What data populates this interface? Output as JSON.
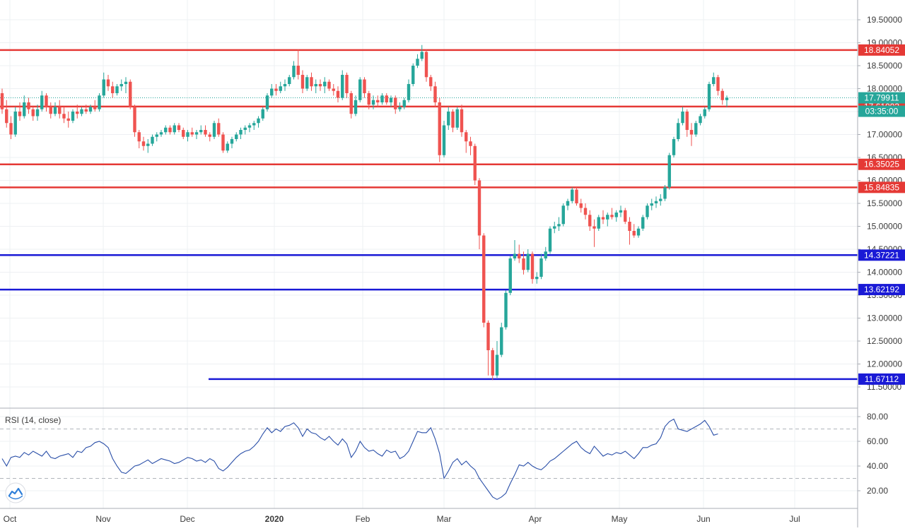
{
  "chart_data": [
    {
      "type": "candlestick",
      "symbol_label": "",
      "x_labels": [
        "Oct",
        "Nov",
        "Dec",
        "2020",
        "Feb",
        "Mar",
        "Apr",
        "May",
        "Jun",
        "Jul"
      ],
      "y_ticks": [
        "11.50000",
        "12.00000",
        "12.50000",
        "13.00000",
        "13.50000",
        "14.00000",
        "14.50000",
        "15.00000",
        "15.50000",
        "16.00000",
        "16.50000",
        "17.00000",
        "17.50000",
        "18.00000",
        "18.50000",
        "19.00000",
        "19.50000"
      ],
      "ylim": [
        11.3,
        20.1
      ],
      "grid": true,
      "colors": {
        "up": "#26a69a",
        "down": "#ef5350",
        "support": "#1a1ad6",
        "resistance": "#e53935",
        "current": "#26a69a",
        "countdown": "#26a69a"
      },
      "horizontal_levels": [
        {
          "value": 18.84052,
          "label": "18.84052",
          "kind": "resistance"
        },
        {
          "value": 17.61003,
          "label": "17.61003",
          "kind": "resistance"
        },
        {
          "value": 16.35025,
          "label": "16.35025",
          "kind": "resistance"
        },
        {
          "value": 15.84835,
          "label": "15.84835",
          "kind": "resistance"
        },
        {
          "value": 14.37221,
          "label": "14.37221",
          "kind": "support"
        },
        {
          "value": 13.62192,
          "label": "13.62192",
          "kind": "support"
        },
        {
          "value": 11.67112,
          "label": "11.67112",
          "kind": "support",
          "starts_at": "Dec"
        }
      ],
      "last_price": {
        "value": 17.79911,
        "label": "17.79911"
      },
      "countdown": "03:35:00",
      "candles": [
        [
          17.9,
          18.0,
          17.45,
          17.55
        ],
        [
          17.55,
          17.75,
          17.15,
          17.25
        ],
        [
          17.25,
          17.4,
          16.9,
          17.0
        ],
        [
          17.0,
          17.6,
          16.95,
          17.5
        ],
        [
          17.5,
          17.7,
          17.3,
          17.4
        ],
        [
          17.4,
          17.85,
          17.35,
          17.7
        ],
        [
          17.7,
          17.8,
          17.45,
          17.55
        ],
        [
          17.55,
          17.6,
          17.3,
          17.4
        ],
        [
          17.4,
          17.65,
          17.3,
          17.55
        ],
        [
          17.55,
          17.95,
          17.5,
          17.85
        ],
        [
          17.85,
          17.9,
          17.5,
          17.6
        ],
        [
          17.6,
          17.7,
          17.35,
          17.45
        ],
        [
          17.45,
          17.7,
          17.4,
          17.6
        ],
        [
          17.6,
          17.75,
          17.35,
          17.45
        ],
        [
          17.45,
          17.6,
          17.25,
          17.35
        ],
        [
          17.35,
          17.5,
          17.15,
          17.3
        ],
        [
          17.3,
          17.55,
          17.25,
          17.5
        ],
        [
          17.5,
          17.65,
          17.35,
          17.45
        ],
        [
          17.45,
          17.6,
          17.4,
          17.55
        ],
        [
          17.55,
          17.65,
          17.45,
          17.5
        ],
        [
          17.5,
          17.65,
          17.45,
          17.6
        ],
        [
          17.6,
          17.75,
          17.5,
          17.55
        ],
        [
          17.55,
          17.9,
          17.5,
          17.85
        ],
        [
          17.85,
          18.35,
          17.8,
          18.2
        ],
        [
          18.2,
          18.3,
          17.95,
          18.05
        ],
        [
          18.05,
          18.15,
          17.8,
          17.9
        ],
        [
          17.9,
          18.1,
          17.85,
          18.05
        ],
        [
          18.05,
          18.2,
          17.95,
          18.1
        ],
        [
          18.1,
          18.25,
          17.9,
          18.15
        ],
        [
          18.15,
          18.2,
          17.55,
          17.6
        ],
        [
          17.6,
          17.65,
          16.95,
          17.05
        ],
        [
          17.05,
          17.1,
          16.7,
          16.85
        ],
        [
          16.85,
          16.95,
          16.65,
          16.75
        ],
        [
          16.75,
          16.9,
          16.6,
          16.8
        ],
        [
          16.8,
          17.0,
          16.75,
          16.95
        ],
        [
          16.95,
          17.05,
          16.85,
          17.0
        ],
        [
          17.0,
          17.1,
          16.95,
          17.05
        ],
        [
          17.05,
          17.2,
          17.0,
          17.15
        ],
        [
          17.15,
          17.2,
          17.0,
          17.05
        ],
        [
          17.05,
          17.25,
          17.0,
          17.2
        ],
        [
          17.2,
          17.25,
          17.05,
          17.1
        ],
        [
          17.1,
          17.15,
          16.9,
          16.95
        ],
        [
          16.95,
          17.1,
          16.85,
          17.05
        ],
        [
          17.05,
          17.15,
          16.95,
          17.0
        ],
        [
          17.0,
          17.1,
          16.9,
          17.05
        ],
        [
          17.05,
          17.2,
          17.0,
          17.1
        ],
        [
          17.1,
          17.2,
          16.95,
          17.0
        ],
        [
          17.0,
          17.05,
          16.85,
          16.95
        ],
        [
          16.95,
          17.3,
          16.9,
          17.25
        ],
        [
          17.25,
          17.35,
          16.95,
          17.0
        ],
        [
          17.0,
          17.05,
          16.6,
          16.65
        ],
        [
          16.65,
          16.85,
          16.6,
          16.8
        ],
        [
          16.8,
          16.95,
          16.7,
          16.9
        ],
        [
          16.9,
          17.05,
          16.85,
          17.0
        ],
        [
          17.0,
          17.15,
          16.9,
          17.1
        ],
        [
          17.1,
          17.2,
          17.0,
          17.15
        ],
        [
          17.15,
          17.25,
          17.05,
          17.2
        ],
        [
          17.2,
          17.3,
          17.1,
          17.25
        ],
        [
          17.25,
          17.4,
          17.15,
          17.35
        ],
        [
          17.35,
          17.6,
          17.3,
          17.55
        ],
        [
          17.55,
          17.9,
          17.5,
          17.85
        ],
        [
          17.85,
          18.1,
          17.8,
          18.0
        ],
        [
          18.0,
          18.1,
          17.85,
          17.95
        ],
        [
          17.95,
          18.15,
          17.9,
          18.05
        ],
        [
          18.05,
          18.2,
          17.95,
          18.1
        ],
        [
          18.1,
          18.3,
          18.05,
          18.25
        ],
        [
          18.25,
          18.6,
          18.2,
          18.5
        ],
        [
          18.5,
          18.85,
          18.2,
          18.3
        ],
        [
          18.3,
          18.4,
          17.9,
          18.0
        ],
        [
          18.0,
          18.3,
          17.95,
          18.25
        ],
        [
          18.25,
          18.35,
          17.95,
          18.05
        ],
        [
          18.05,
          18.2,
          17.9,
          18.1
        ],
        [
          18.1,
          18.2,
          17.95,
          18.05
        ],
        [
          18.05,
          18.25,
          17.9,
          18.15
        ],
        [
          18.15,
          18.2,
          17.95,
          18.0
        ],
        [
          18.0,
          18.1,
          17.85,
          17.95
        ],
        [
          17.95,
          18.05,
          17.7,
          17.8
        ],
        [
          17.8,
          18.4,
          17.75,
          18.3
        ],
        [
          18.3,
          18.35,
          17.8,
          17.9
        ],
        [
          17.9,
          17.95,
          17.35,
          17.45
        ],
        [
          17.45,
          17.85,
          17.4,
          17.75
        ],
        [
          17.75,
          18.25,
          17.7,
          18.2
        ],
        [
          18.2,
          18.25,
          17.8,
          17.9
        ],
        [
          17.9,
          17.95,
          17.55,
          17.65
        ],
        [
          17.65,
          17.85,
          17.55,
          17.75
        ],
        [
          17.75,
          17.85,
          17.6,
          17.7
        ],
        [
          17.7,
          17.9,
          17.65,
          17.85
        ],
        [
          17.85,
          17.9,
          17.65,
          17.7
        ],
        [
          17.7,
          17.85,
          17.6,
          17.8
        ],
        [
          17.8,
          17.85,
          17.45,
          17.55
        ],
        [
          17.55,
          17.7,
          17.5,
          17.6
        ],
        [
          17.6,
          17.8,
          17.55,
          17.75
        ],
        [
          17.75,
          18.2,
          17.7,
          18.1
        ],
        [
          18.1,
          18.55,
          18.05,
          18.5
        ],
        [
          18.5,
          18.75,
          18.45,
          18.65
        ],
        [
          18.65,
          18.95,
          18.6,
          18.8
        ],
        [
          18.8,
          18.85,
          18.15,
          18.25
        ],
        [
          18.25,
          18.3,
          17.95,
          18.05
        ],
        [
          18.05,
          18.15,
          17.6,
          17.7
        ],
        [
          17.7,
          17.8,
          16.4,
          16.55
        ],
        [
          16.55,
          17.3,
          16.5,
          17.2
        ],
        [
          17.2,
          17.6,
          17.1,
          17.5
        ],
        [
          17.5,
          17.55,
          17.05,
          17.15
        ],
        [
          17.15,
          17.6,
          17.1,
          17.55
        ],
        [
          17.55,
          17.65,
          16.95,
          17.05
        ],
        [
          17.05,
          17.1,
          16.6,
          16.85
        ],
        [
          16.85,
          16.95,
          16.55,
          16.75
        ],
        [
          16.75,
          16.8,
          15.9,
          16.0
        ],
        [
          16.0,
          16.05,
          14.5,
          14.8
        ],
        [
          14.8,
          14.85,
          12.8,
          12.9
        ],
        [
          12.9,
          12.95,
          11.75,
          12.3
        ],
        [
          12.3,
          12.35,
          11.65,
          11.75
        ],
        [
          11.75,
          12.5,
          11.7,
          12.2
        ],
        [
          12.2,
          12.9,
          12.15,
          12.8
        ],
        [
          12.8,
          13.6,
          12.75,
          13.55
        ],
        [
          13.55,
          14.35,
          13.5,
          14.3
        ],
        [
          14.3,
          14.7,
          14.25,
          14.4
        ],
        [
          14.4,
          14.6,
          14.2,
          14.3
        ],
        [
          14.3,
          14.45,
          13.95,
          14.05
        ],
        [
          14.05,
          14.5,
          14.0,
          14.4
        ],
        [
          14.4,
          14.45,
          13.75,
          13.85
        ],
        [
          13.85,
          14.0,
          13.75,
          13.9
        ],
        [
          13.9,
          14.4,
          13.85,
          14.3
        ],
        [
          14.3,
          14.55,
          14.25,
          14.45
        ],
        [
          14.45,
          15.0,
          14.4,
          14.95
        ],
        [
          14.95,
          15.1,
          14.85,
          15.0
        ],
        [
          15.0,
          15.2,
          14.9,
          15.05
        ],
        [
          15.05,
          15.5,
          15.0,
          15.45
        ],
        [
          15.45,
          15.6,
          15.35,
          15.55
        ],
        [
          15.55,
          15.85,
          15.5,
          15.8
        ],
        [
          15.8,
          15.85,
          15.45,
          15.5
        ],
        [
          15.5,
          15.6,
          15.3,
          15.4
        ],
        [
          15.4,
          15.5,
          15.15,
          15.25
        ],
        [
          15.25,
          15.35,
          14.9,
          15.0
        ],
        [
          15.0,
          15.15,
          14.55,
          14.95
        ],
        [
          14.95,
          15.25,
          14.9,
          15.2
        ],
        [
          15.2,
          15.35,
          15.05,
          15.15
        ],
        [
          15.15,
          15.3,
          15.0,
          15.25
        ],
        [
          15.25,
          15.4,
          15.15,
          15.2
        ],
        [
          15.2,
          15.35,
          15.1,
          15.3
        ],
        [
          15.3,
          15.45,
          15.2,
          15.35
        ],
        [
          15.35,
          15.4,
          15.05,
          15.1
        ],
        [
          15.1,
          15.2,
          14.6,
          14.9
        ],
        [
          14.9,
          15.05,
          14.75,
          14.8
        ],
        [
          14.8,
          15.0,
          14.75,
          14.95
        ],
        [
          14.95,
          15.25,
          14.9,
          15.2
        ],
        [
          15.2,
          15.5,
          15.15,
          15.45
        ],
        [
          15.45,
          15.6,
          15.35,
          15.5
        ],
        [
          15.5,
          15.65,
          15.4,
          15.55
        ],
        [
          15.55,
          15.7,
          15.45,
          15.6
        ],
        [
          15.6,
          15.9,
          15.55,
          15.85
        ],
        [
          15.85,
          16.6,
          15.8,
          16.55
        ],
        [
          16.55,
          16.95,
          16.5,
          16.9
        ],
        [
          16.9,
          17.35,
          16.85,
          17.25
        ],
        [
          17.25,
          17.6,
          17.2,
          17.5
        ],
        [
          17.5,
          17.55,
          16.95,
          17.1
        ],
        [
          17.1,
          17.25,
          16.75,
          17.0
        ],
        [
          17.0,
          17.3,
          16.95,
          17.25
        ],
        [
          17.25,
          17.45,
          17.2,
          17.4
        ],
        [
          17.4,
          17.6,
          17.35,
          17.55
        ],
        [
          17.55,
          18.15,
          17.5,
          18.1
        ],
        [
          18.1,
          18.35,
          18.05,
          18.25
        ],
        [
          18.25,
          18.3,
          17.85,
          17.95
        ],
        [
          17.95,
          18.0,
          17.65,
          17.75
        ],
        [
          17.75,
          17.85,
          17.6,
          17.8
        ]
      ]
    },
    {
      "type": "line",
      "title": "RSI (14, close)",
      "y_ticks": [
        "20.00",
        "40.00",
        "60.00",
        "80.00"
      ],
      "ylim": [
        8,
        88
      ],
      "bands": [
        30,
        70
      ],
      "color": "#2a4fa8",
      "values": [
        46,
        40,
        47,
        48,
        47,
        51,
        49,
        52,
        50,
        48,
        52,
        47,
        46,
        48,
        49,
        50,
        47,
        52,
        51,
        55,
        56,
        59,
        60,
        58,
        55,
        46,
        40,
        35,
        34,
        37,
        40,
        41,
        43,
        45,
        42,
        44,
        46,
        45,
        44,
        42,
        43,
        45,
        47,
        46,
        44,
        45,
        43,
        46,
        44,
        38,
        36,
        39,
        43,
        47,
        50,
        52,
        53,
        56,
        60,
        66,
        71,
        67,
        70,
        68,
        72,
        73,
        75,
        71,
        64,
        70,
        67,
        66,
        63,
        61,
        64,
        60,
        57,
        62,
        58,
        47,
        52,
        60,
        55,
        52,
        53,
        50,
        48,
        53,
        51,
        52,
        46,
        48,
        52,
        60,
        68,
        67,
        67,
        71,
        62,
        50,
        30,
        36,
        43,
        46,
        41,
        44,
        40,
        37,
        30,
        25,
        20,
        15,
        13,
        15,
        18,
        26,
        33,
        41,
        40,
        43,
        40,
        38,
        37,
        40,
        44,
        46,
        49,
        52,
        55,
        58,
        60,
        55,
        52,
        50,
        56,
        52,
        48,
        50,
        49,
        51,
        50,
        52,
        49,
        46,
        50,
        55,
        55,
        57,
        58,
        63,
        72,
        76,
        78,
        70,
        69,
        68,
        70,
        72,
        74,
        77,
        72,
        65,
        66
      ]
    }
  ],
  "logo": {
    "icon": "tradingview-logo-icon"
  }
}
